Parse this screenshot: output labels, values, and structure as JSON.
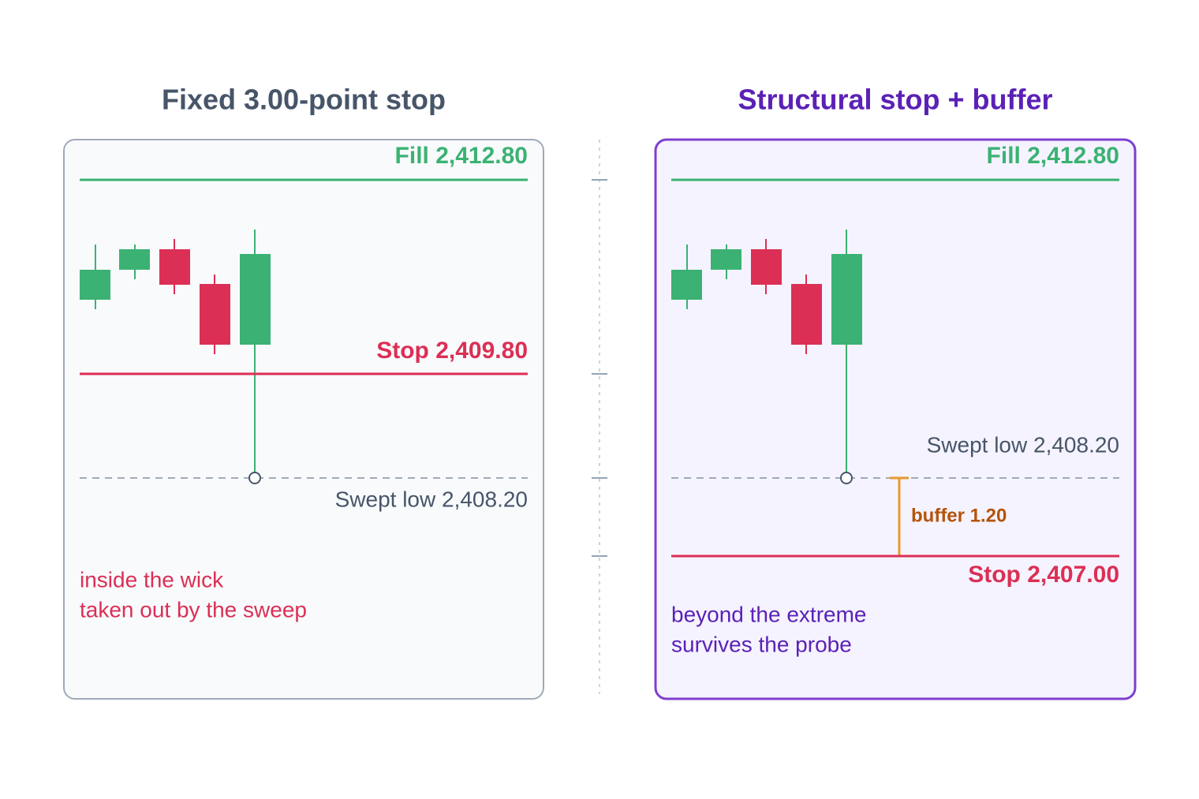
{
  "left": {
    "title": "Fixed 3.00-point stop",
    "fill_label": "Fill 2,412.80",
    "stop_label": "Stop 2,409.80",
    "swept_label": "Swept low 2,408.20",
    "notes": [
      "inside the wick",
      "taken out by the sweep"
    ]
  },
  "right": {
    "title": "Structural stop + buffer",
    "fill_label": "Fill 2,412.80",
    "swept_label": "Swept low 2,408.20",
    "buffer_label": "buffer 1.20",
    "stop_label": "Stop 2,407.00",
    "notes": [
      "beyond the extreme",
      "survives the probe"
    ]
  }
}
